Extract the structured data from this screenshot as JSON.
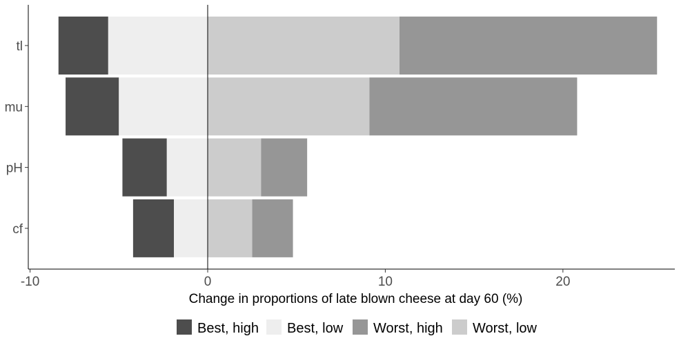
{
  "chart_data": {
    "type": "bar",
    "orientation": "horizontal",
    "stacked": true,
    "title": "",
    "xlabel": "Change in proportions of late blown cheese at day 60 (%)",
    "ylabel": "",
    "xlim": [
      -10.1,
      26.3
    ],
    "x_ticks": [
      -10,
      0,
      10,
      20
    ],
    "x_tick_labels": [
      "-10",
      "0",
      "10",
      "20"
    ],
    "categories": [
      "tl",
      "mu",
      "pH",
      "cf"
    ],
    "grid": false,
    "legend_position": "bottom",
    "legend": [
      "Best, high",
      "Best, low",
      "Worst, high",
      "Worst, low"
    ],
    "series": [
      {
        "name": "Best, high",
        "color": "#4d4d4d",
        "segments": [
          [
            -8.4,
            -5.6
          ],
          [
            -8.0,
            -5.0
          ],
          [
            -4.8,
            -2.3
          ],
          [
            -4.2,
            -1.9
          ]
        ]
      },
      {
        "name": "Best, low",
        "color": "#eeeeee",
        "segments": [
          [
            -5.6,
            0
          ],
          [
            -5.0,
            0
          ],
          [
            -2.3,
            0
          ],
          [
            -1.9,
            0
          ]
        ]
      },
      {
        "name": "Worst, high",
        "color": "#969696",
        "segments": [
          [
            10.8,
            25.3
          ],
          [
            9.1,
            20.8
          ],
          [
            3.0,
            5.6
          ],
          [
            2.5,
            4.8
          ]
        ]
      },
      {
        "name": "Worst, low",
        "color": "#cccccc",
        "segments": [
          [
            0,
            10.8
          ],
          [
            0,
            9.1
          ],
          [
            0,
            3.0
          ],
          [
            0,
            2.5
          ]
        ]
      }
    ]
  }
}
